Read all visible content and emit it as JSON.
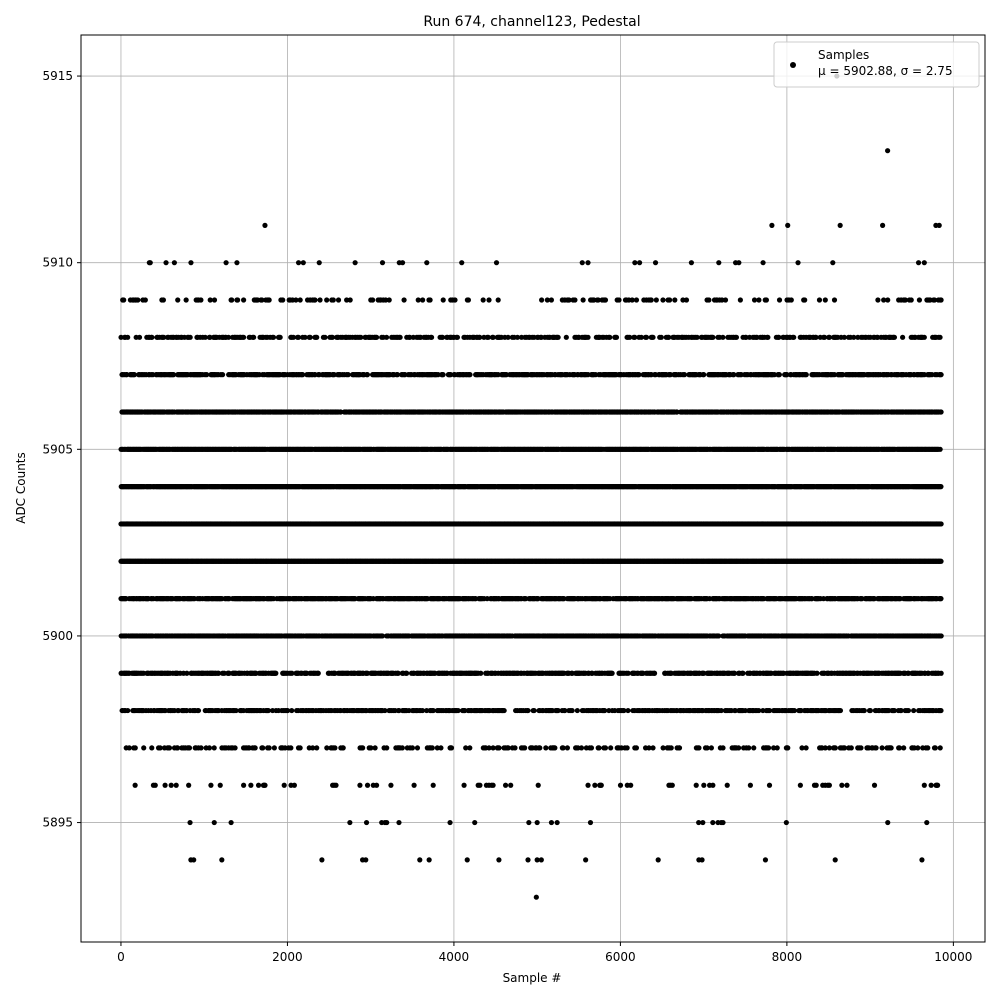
{
  "chart_data": {
    "type": "scatter",
    "title": "Run 674, channel123, Pedestal",
    "xlabel": "Sample #",
    "ylabel": "ADC Counts",
    "xlim": [
      -480,
      10380
    ],
    "ylim": [
      5891.8,
      5916.1
    ],
    "xticks": [
      0,
      2000,
      4000,
      6000,
      8000,
      10000
    ],
    "xtick_labels": [
      "0",
      "2000",
      "4000",
      "6000",
      "8000",
      "10000"
    ],
    "yticks": [
      5895,
      5900,
      5905,
      5910,
      5915
    ],
    "ytick_labels": [
      "5895",
      "5900",
      "5905",
      "5910",
      "5915"
    ],
    "grid": true,
    "legend_position": "top-right",
    "marker_color": "#000000",
    "series": [
      {
        "name": "Samples",
        "stats_label": "μ = 5902.88, σ = 2.75",
        "n_samples": 9850,
        "x_range": [
          0,
          9850
        ],
        "value_levels": [
          5893,
          5894,
          5895,
          5896,
          5897,
          5898,
          5899,
          5900,
          5901,
          5902,
          5903,
          5904,
          5905,
          5906,
          5907,
          5908,
          5909,
          5910,
          5911,
          5913,
          5915
        ],
        "level_density": {
          "5902": 1.0,
          "5903": 1.0,
          "5904": 0.97,
          "5905": 0.95,
          "5906": 0.85,
          "5901": 0.75,
          "5900": 0.85,
          "5899": 0.55,
          "5898": 0.5,
          "5907": 0.6,
          "5908": 0.35,
          "5897": 0.22,
          "5909": 0.14,
          "5896": 0.06,
          "5910": 0.03,
          "5895": 0.012,
          "5894": 0.006
        },
        "outliers": [
          {
            "x": 4990,
            "y": 5893
          },
          {
            "x": 840,
            "y": 5894
          },
          {
            "x": 3590,
            "y": 5894
          },
          {
            "x": 4160,
            "y": 5894
          },
          {
            "x": 4890,
            "y": 5894
          },
          {
            "x": 5000,
            "y": 5894
          },
          {
            "x": 5050,
            "y": 5894
          },
          {
            "x": 830,
            "y": 5895
          },
          {
            "x": 2750,
            "y": 5895
          },
          {
            "x": 3340,
            "y": 5895
          },
          {
            "x": 4250,
            "y": 5895
          },
          {
            "x": 4900,
            "y": 5895
          },
          {
            "x": 5000,
            "y": 5895
          },
          {
            "x": 5240,
            "y": 5895
          },
          {
            "x": 6940,
            "y": 5895
          },
          {
            "x": 7110,
            "y": 5895
          },
          {
            "x": 1730,
            "y": 5911
          },
          {
            "x": 7820,
            "y": 5911
          },
          {
            "x": 8010,
            "y": 5911
          },
          {
            "x": 8640,
            "y": 5911
          },
          {
            "x": 9150,
            "y": 5911
          },
          {
            "x": 9790,
            "y": 5911
          },
          {
            "x": 9830,
            "y": 5911
          },
          {
            "x": 9210,
            "y": 5913
          },
          {
            "x": 8600,
            "y": 5915
          }
        ]
      }
    ]
  }
}
